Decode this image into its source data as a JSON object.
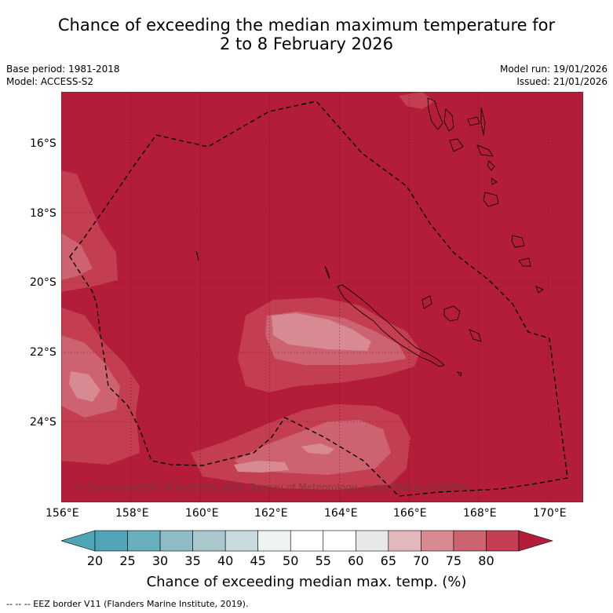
{
  "title": {
    "line1": "Chance of exceeding the median maximum temperature for",
    "line2": "2 to 8 February 2026"
  },
  "meta": {
    "base_period": "Base period: 1981-2018",
    "model": "Model: ACCESS-S2",
    "model_run": "Model run: 19/01/2026",
    "issued": "Issued: 21/01/2026"
  },
  "map": {
    "lat_labels": [
      "16°S",
      "18°S",
      "20°S",
      "22°S",
      "24°S"
    ],
    "lon_labels": [
      "156°E",
      "158°E",
      "160°E",
      "162°E",
      "164°E",
      "166°E",
      "168°E",
      "170°E"
    ],
    "copyright": "© Commonwealth of Australia 2026, Bureau of Meteorology, supported by COSPPac",
    "colors": {
      "p80": "#b31d3a",
      "p75": "#c33e50",
      "p70": "#cd6270",
      "p65": "#d88a93",
      "coast": "#000000"
    }
  },
  "colorbar": {
    "labels": [
      "20",
      "25",
      "30",
      "35",
      "40",
      "45",
      "50",
      "55",
      "60",
      "65",
      "70",
      "75",
      "80"
    ],
    "colors": [
      "#4fa5b6",
      "#68afbe",
      "#8ebbc5",
      "#a9c8cd",
      "#c7dadd",
      "#eef2f3",
      "#ffffff",
      "#ffffff",
      "#e8e8e8",
      "#e2b8bd",
      "#d88a93",
      "#cd6270",
      "#c33e50"
    ],
    "low_color": "#4fa5b6",
    "high_color": "#b31d3a",
    "title": "Chance of exceeding median max. temp. (%)"
  },
  "footer": {
    "eez_legend": "--  --  -- EEZ border V11 (Flanders Marine Institute, 2019)."
  }
}
